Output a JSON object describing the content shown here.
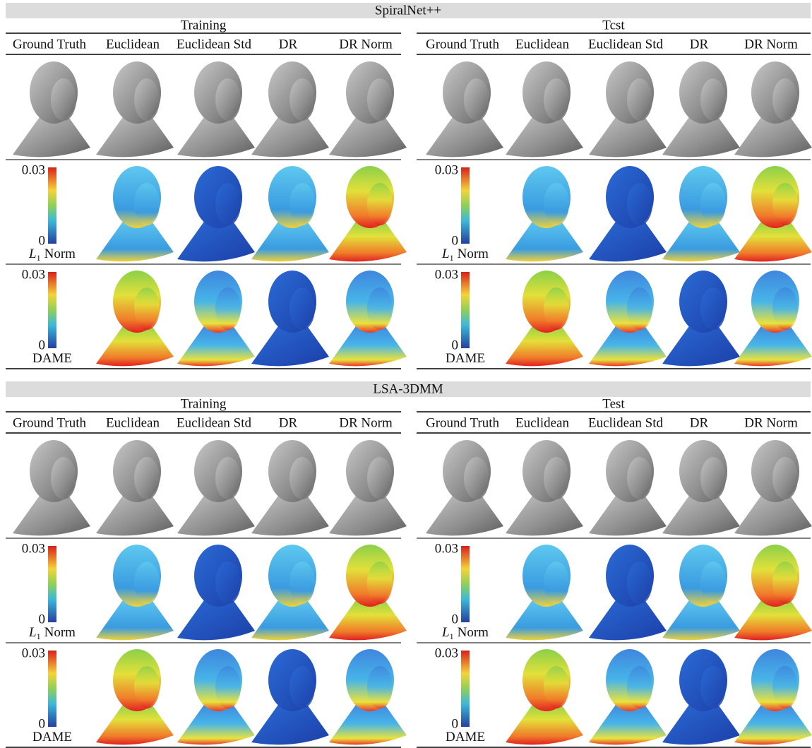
{
  "panels": [
    {
      "title": "SpiralNet++",
      "halves": [
        {
          "title": "Training",
          "columns": [
            "Ground Truth",
            "Euclidean",
            "Euclidean Std",
            "DR",
            "DR Norm"
          ],
          "scales": [
            {
              "max": "0.03",
              "min": "0",
              "symbol": "L",
              "subscript": "1",
              "text": "Norm"
            },
            {
              "max": "0.03",
              "min": "0",
              "text": "DAME"
            }
          ]
        },
        {
          "title": "Tcst",
          "columns": [
            "Ground Truth",
            "Euclidean",
            "Euclidean Std",
            "DR",
            "DR Norm"
          ],
          "scales": [
            {
              "max": "0.03",
              "min": "0",
              "symbol": "L",
              "subscript": "1",
              "text": "Norm"
            },
            {
              "max": "0.03",
              "min": "0",
              "text": "DAME"
            }
          ]
        }
      ]
    },
    {
      "title": "LSA-3DMM",
      "halves": [
        {
          "title": "Training",
          "columns": [
            "Ground Truth",
            "Euclidean",
            "Euclidean Std",
            "DR",
            "DR Norm"
          ],
          "scales": [
            {
              "max": "0.03",
              "min": "0",
              "symbol": "L",
              "subscript": "1",
              "text": "Norm"
            },
            {
              "max": "0.03",
              "min": "0",
              "text": "DAME"
            }
          ]
        },
        {
          "title": "Test",
          "columns": [
            "Ground Truth",
            "Euclidean",
            "Euclidean Std",
            "DR",
            "DR Norm"
          ],
          "scales": [
            {
              "max": "0.03",
              "min": "0",
              "symbol": "L",
              "subscript": "1",
              "text": "Norm"
            },
            {
              "max": "0.03",
              "min": "0",
              "text": "DAME"
            }
          ]
        }
      ]
    }
  ]
}
